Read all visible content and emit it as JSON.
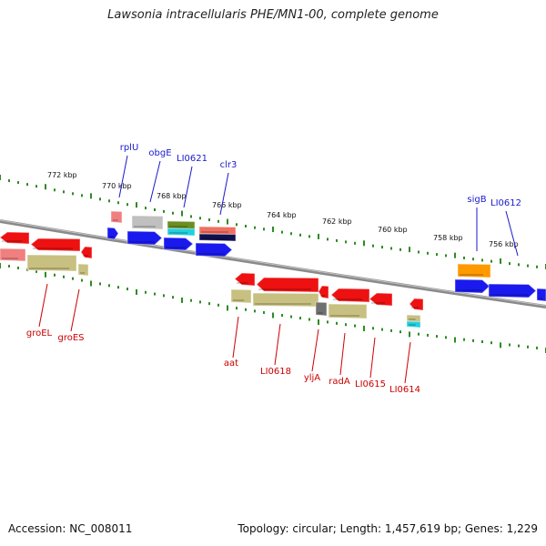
{
  "title": "Lawsonia intracellularis PHE/MN1-00, complete genome",
  "footer": {
    "accession": "Accession: NC_008011",
    "summary": "Topology: circular; Length: 1,457,619 bp; Genes: 1,229"
  },
  "scale": {
    "labels": [
      "772 kbp",
      "770 kbp",
      "768 kbp",
      "766 kbp",
      "764 kbp",
      "762 kbp",
      "760 kbp",
      "758 kbp",
      "756 kbp"
    ]
  },
  "colors": {
    "backbone": "#8a8a8a",
    "tick": "#2e8b22",
    "label_forward": "#1a1acc",
    "label_reverse": "#cc0000",
    "red": "#ee1111",
    "pink": "#f08080",
    "olive": "#c8c080",
    "blue": "#1a1aee",
    "gray": "#c0c0c0",
    "green_olive": "#6b8e23",
    "cyan": "#20d0e0",
    "salmon": "#f07060",
    "navy": "#101050",
    "orange": "#ff9900",
    "darkgray": "#707070"
  },
  "forward_labels": [
    {
      "name": "rplU"
    },
    {
      "name": "obgE"
    },
    {
      "name": "LI0621"
    },
    {
      "name": "clr3"
    },
    {
      "name": "sigB"
    },
    {
      "name": "LI0612"
    }
  ],
  "reverse_labels": [
    {
      "name": "groEL"
    },
    {
      "name": "groES"
    },
    {
      "name": "aat"
    },
    {
      "name": "LI0618"
    },
    {
      "name": "yljA"
    },
    {
      "name": "radA"
    },
    {
      "name": "LI0615"
    },
    {
      "name": "LI0614"
    }
  ]
}
